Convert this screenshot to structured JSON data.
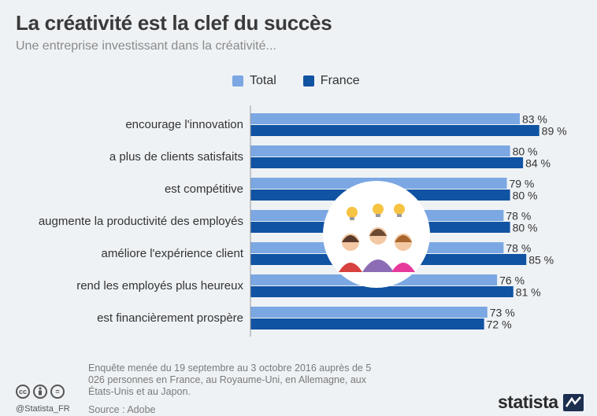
{
  "title": "La créativité est la clef du succès",
  "subtitle": "Une entreprise investissant dans la créativité...",
  "colors": {
    "total": "#7ba7e3",
    "france": "#1053a3"
  },
  "legend": [
    {
      "label": "Total",
      "color": "#7ba7e3"
    },
    {
      "label": "France",
      "color": "#1053a3"
    }
  ],
  "chart_data": {
    "type": "bar",
    "orientation": "horizontal",
    "categories": [
      "encourage l'innovation",
      "a plus de clients satisfaits",
      "est compétitive",
      "augmente la productivité des employés",
      "améliore l'expérience client",
      "rend les employés plus heureux",
      "est financièrement prospère"
    ],
    "series": [
      {
        "name": "Total",
        "color": "#7ba7e3",
        "values": [
          83,
          80,
          79,
          78,
          78,
          76,
          73
        ]
      },
      {
        "name": "France",
        "color": "#1053a3",
        "values": [
          89,
          84,
          80,
          80,
          85,
          81,
          72
        ]
      }
    ],
    "value_suffix": " %",
    "xlim": [
      0,
      100
    ],
    "legend_position": "top",
    "grid": false
  },
  "footer": {
    "note": "Enquête menée du 19 septembre au 3 octobre 2016 auprès de 5 026 personnes en France, au Royaume-Uni, en Allemagne, aux États-Unis et au Japon.",
    "source": "Source : Adobe",
    "handle": "@Statista_FR",
    "logo": "statista",
    "license_icons": [
      "cc",
      "by",
      "="
    ]
  }
}
